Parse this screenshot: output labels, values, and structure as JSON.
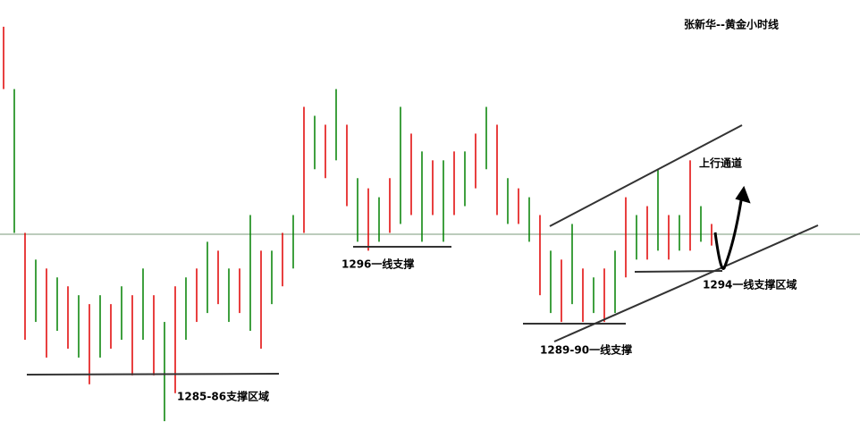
{
  "chart_data": {
    "type": "range-bar",
    "title": "张新华--黄金小时线",
    "annotations": [
      "上行通道",
      "1296一线支撑",
      "1289-90一线支撑",
      "1294一线支撑区域",
      "1285-86支撑区域"
    ],
    "ylim": [
      1280.9,
      1315.4
    ],
    "up_color": "#e00000",
    "down_color": "#008000",
    "high": [
      1313.3,
      1308.4,
      1297.1,
      1295.0,
      1294.3,
      1293.6,
      1292.9,
      1292.2,
      1291.5,
      1292.2,
      1291.5,
      1292.9,
      1292.2,
      1294.3,
      1292.2,
      1290.1,
      1292.9,
      1293.6,
      1294.3,
      1296.4,
      1295.7,
      1294.3,
      1294.3,
      1298.5,
      1295.7,
      1295.7,
      1297.1,
      1298.5,
      1307.0,
      1306.3,
      1305.6,
      1308.4,
      1305.6,
      1301.4,
      1300.6,
      1299.9,
      1301.4,
      1307.0,
      1304.9,
      1303.5,
      1302.8,
      1302.8,
      1303.5,
      1303.5,
      1304.9,
      1307.0,
      1305.6,
      1301.4,
      1300.6,
      1299.9,
      1298.5,
      1295.7,
      1295.0,
      1297.8,
      1294.3,
      1293.6,
      1294.3,
      1295.7,
      1299.9,
      1298.5,
      1299.2,
      1302.1,
      1298.5,
      1298.5,
      1302.8,
      1299.2,
      1297.8
    ],
    "low": [
      1308.4,
      1297.1,
      1288.7,
      1290.1,
      1287.3,
      1289.4,
      1288.0,
      1287.3,
      1285.2,
      1287.3,
      1288.0,
      1288.7,
      1285.9,
      1288.7,
      1285.9,
      1282.3,
      1284.5,
      1288.7,
      1290.1,
      1290.8,
      1291.5,
      1290.1,
      1290.8,
      1289.4,
      1288.0,
      1291.5,
      1292.9,
      1294.3,
      1297.1,
      1302.1,
      1301.4,
      1302.8,
      1299.2,
      1296.4,
      1295.7,
      1296.4,
      1297.1,
      1297.8,
      1298.5,
      1296.4,
      1298.5,
      1296.4,
      1298.5,
      1299.2,
      1300.6,
      1302.1,
      1298.5,
      1297.8,
      1297.8,
      1296.4,
      1292.2,
      1290.8,
      1290.1,
      1291.5,
      1290.1,
      1290.8,
      1290.1,
      1290.8,
      1293.6,
      1295.0,
      1295.0,
      1295.7,
      1295.0,
      1295.7,
      1295.7,
      1296.4,
      1296.1
    ]
  }
}
